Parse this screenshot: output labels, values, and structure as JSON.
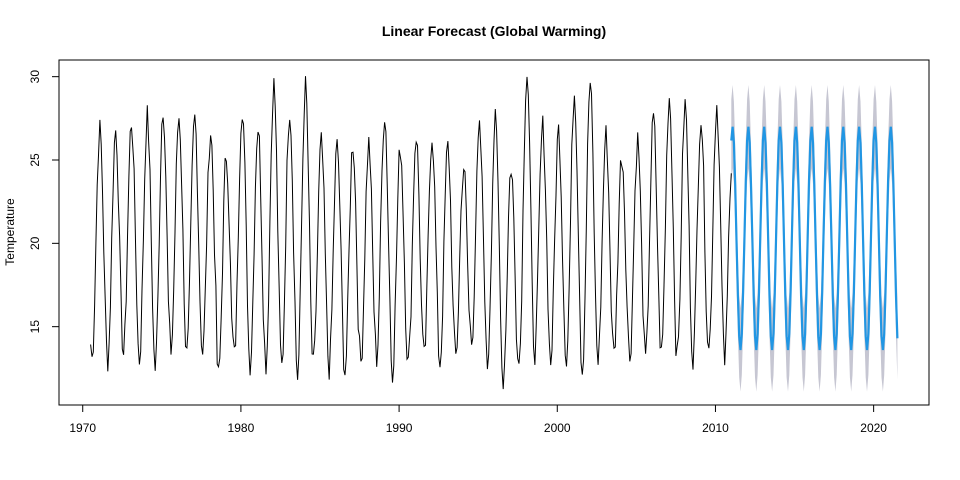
{
  "chart_data": {
    "type": "line",
    "title": "Linear Forecast (Global Warming)",
    "xlabel": "",
    "ylabel": "Temperature",
    "xlim": [
      1968.5,
      2023.5
    ],
    "ylim": [
      10.3,
      31.0
    ],
    "x_ticks": [
      1970,
      1980,
      1990,
      2000,
      2010,
      2020
    ],
    "y_ticks": [
      15,
      20,
      25,
      30
    ],
    "grid": false,
    "legend": "none",
    "colors": {
      "observed": "#000000",
      "forecast": "#2196e3",
      "interval": "#c6c6d2"
    },
    "observed": {
      "start": 1970.5,
      "end": 2011.0,
      "peaks": [
        26.8,
        26.8,
        27.3,
        27.6,
        28.2,
        27.6,
        27.5,
        26.7,
        25.3,
        28.2,
        27.0,
        29.5,
        28.1,
        29.4,
        26.0,
        25.8,
        26.0,
        26.0,
        27.8,
        25.8,
        26.5,
        26.5,
        25.8,
        24.6,
        26.7,
        27.3,
        24.6,
        30.3,
        27.0,
        26.8,
        29.1,
        29.6,
        26.5,
        25.3,
        26.2,
        27.5,
        28.8,
        28.3,
        27.6,
        28.3,
        26.8,
        28.7,
        27.8
      ],
      "troughs": [
        13.1,
        13.0,
        13.4,
        13.0,
        12.5,
        13.6,
        13.3,
        13.5,
        12.0,
        13.2,
        12.8,
        12.8,
        12.6,
        12.0,
        12.6,
        12.5,
        12.3,
        12.9,
        13.1,
        12.4,
        12.8,
        13.1,
        12.8,
        13.2,
        14.1,
        12.7,
        11.8,
        12.8,
        13.5,
        12.9,
        13.0,
        12.4,
        13.1,
        13.4,
        13.2,
        12.9,
        13.3,
        13.1,
        13.2,
        13.6,
        13.0,
        13.4,
        13.3
      ],
      "last_value": 24.2
    },
    "forecast": {
      "start": 2011.0,
      "end": 2021.5,
      "peak": 27.0,
      "trough": 13.6,
      "end_value": 14.3,
      "interval_upper_peak": 29.6,
      "interval_lower_trough": 11.0
    }
  }
}
